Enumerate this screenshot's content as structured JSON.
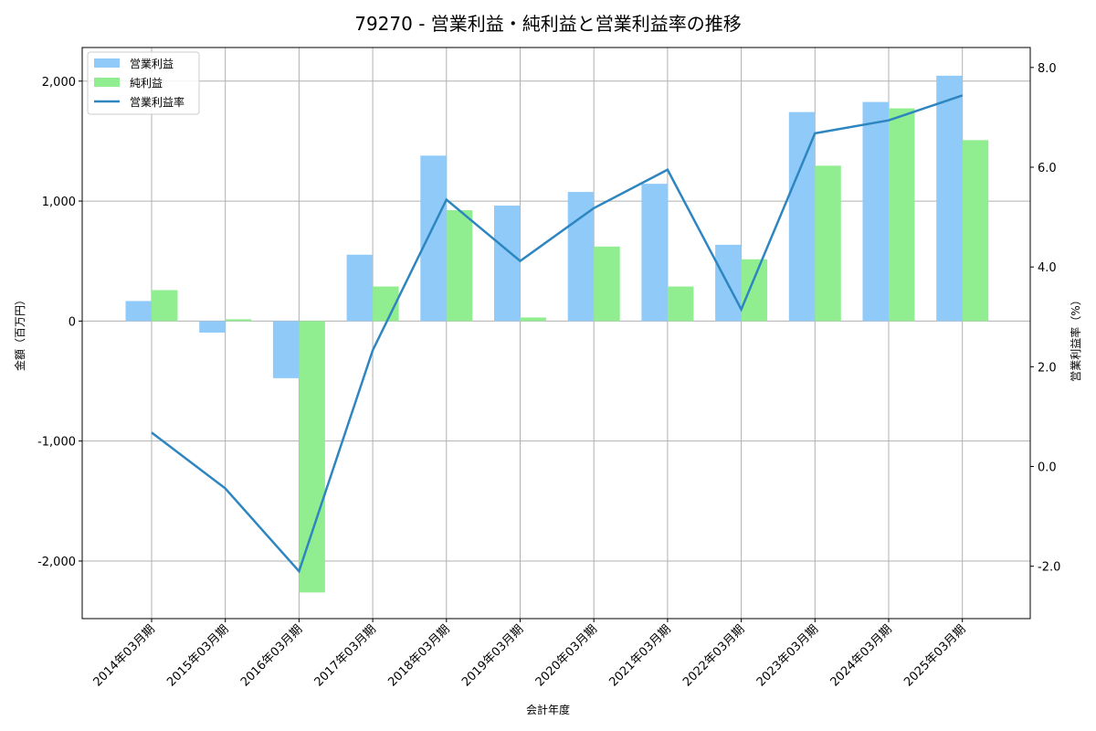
{
  "chart_data": {
    "type": "bar+line",
    "title": "79270 - 営業利益・純利益と営業利益率の推移",
    "xlabel": "会計年度",
    "ylabel": "金額（百万円）",
    "y2label": "営業利益率（%）",
    "categories": [
      "2014年03月期",
      "2015年03月期",
      "2016年03月期",
      "2017年03月期",
      "2018年03月期",
      "2019年03月期",
      "2020年03月期",
      "2021年03月期",
      "2022年03月期",
      "2023年03月期",
      "2024年03月期",
      "2025年03月期"
    ],
    "series": [
      {
        "name": "営業利益",
        "type": "bar",
        "axis": "left",
        "color": "#90caf9",
        "values": [
          167,
          -96,
          -476,
          553,
          1379,
          962,
          1076,
          1144,
          636,
          1742,
          1826,
          2045
        ]
      },
      {
        "name": "純利益",
        "type": "bar",
        "axis": "left",
        "color": "#90ee90",
        "values": [
          258,
          15,
          -2262,
          288,
          924,
          30,
          621,
          288,
          515,
          1295,
          1773,
          1508
        ]
      },
      {
        "name": "営業利益率",
        "type": "line",
        "axis": "right",
        "color": "#2e86c1",
        "values": [
          0.68,
          -0.44,
          -2.1,
          2.33,
          5.35,
          4.12,
          5.18,
          5.95,
          3.15,
          6.68,
          6.94,
          7.44
        ]
      }
    ],
    "ylim": [
      -2480,
      2280
    ],
    "y2lim": [
      -3.05,
      8.4
    ],
    "yticks": [
      -2000,
      -1000,
      0,
      1000,
      2000
    ],
    "yticklabels": [
      "-2,000",
      "-1,000",
      "0",
      "1,000",
      "2,000"
    ],
    "y2ticks": [
      -2.0,
      0.0,
      2.0,
      4.0,
      6.0,
      8.0
    ],
    "y2ticklabels": [
      "-2.0",
      "0.0",
      "2.0",
      "4.0",
      "6.0",
      "8.0"
    ],
    "grid": true,
    "legend_position": "upper left"
  }
}
